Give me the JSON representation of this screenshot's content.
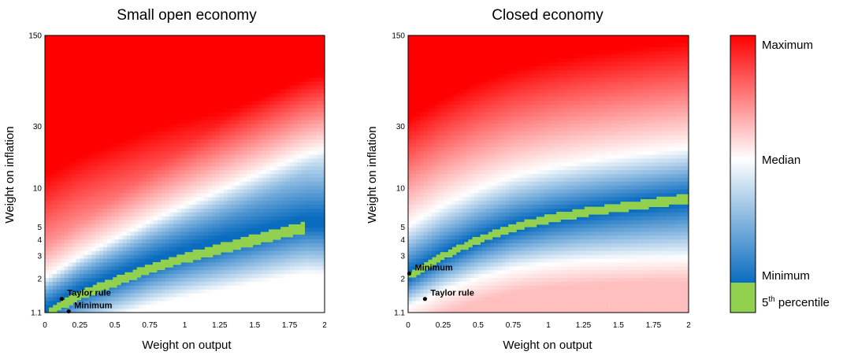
{
  "chart_data": [
    {
      "type": "heatmap",
      "title": "Small open economy",
      "xlabel": "Weight on output",
      "ylabel": "Weight on inflation",
      "xlim": [
        0,
        2
      ],
      "ylim": [
        1.1,
        150
      ],
      "y_scale": "log",
      "x_ticks": [
        "0",
        "0.25",
        "0.5",
        "0.75",
        "1",
        "1.25",
        "1.5",
        "1.75",
        "2"
      ],
      "y_ticks": [
        "1.1",
        "2",
        "3",
        "4",
        "5",
        "10",
        "30",
        "150"
      ],
      "optimal_band": [
        {
          "x": 0.02,
          "y": 1.1
        },
        {
          "x": 0.25,
          "y": 1.5
        },
        {
          "x": 0.5,
          "y": 1.9
        },
        {
          "x": 0.75,
          "y": 2.4
        },
        {
          "x": 1.0,
          "y": 2.9
        },
        {
          "x": 1.25,
          "y": 3.4
        },
        {
          "x": 1.5,
          "y": 4.0
        },
        {
          "x": 1.75,
          "y": 4.7
        },
        {
          "x": 1.87,
          "y": 5.0
        }
      ],
      "annotations": [
        {
          "label": "Taylor rule",
          "x": 0.12,
          "y": 1.4
        },
        {
          "label": "Minimum",
          "x": 0.17,
          "y": 1.1
        }
      ]
    },
    {
      "type": "heatmap",
      "title": "Closed economy",
      "xlabel": "Weight on output",
      "ylabel": "Weight on inflation",
      "xlim": [
        0,
        2
      ],
      "ylim": [
        1.1,
        150
      ],
      "y_scale": "log",
      "x_ticks": [
        "0",
        "0.25",
        "0.5",
        "0.75",
        "1",
        "1.25",
        "1.5",
        "1.75",
        "2"
      ],
      "y_ticks": [
        "1.1",
        "2",
        "3",
        "4",
        "5",
        "10",
        "30",
        "150"
      ],
      "optimal_band": [
        {
          "x": 0.0,
          "y": 2.1
        },
        {
          "x": 0.25,
          "y": 3.0
        },
        {
          "x": 0.5,
          "y": 4.0
        },
        {
          "x": 0.75,
          "y": 5.0
        },
        {
          "x": 1.0,
          "y": 5.8
        },
        {
          "x": 1.25,
          "y": 6.5
        },
        {
          "x": 1.5,
          "y": 7.1
        },
        {
          "x": 1.75,
          "y": 7.7
        },
        {
          "x": 2.0,
          "y": 8.3
        }
      ],
      "annotations": [
        {
          "label": "Minimum",
          "x": 0.0,
          "y": 2.2
        },
        {
          "label": "Taylor rule",
          "x": 0.12,
          "y": 1.4
        }
      ]
    }
  ],
  "legend": {
    "labels": [
      "Maximum",
      "Median",
      "Minimum",
      "percentile"
    ],
    "percentile_number": "5",
    "percentile_suffix": "th"
  },
  "colors": {
    "maximum": "#ff0000",
    "median": "#ffffff",
    "minimum": "#0a6cbf",
    "percentile": "#92d050"
  }
}
